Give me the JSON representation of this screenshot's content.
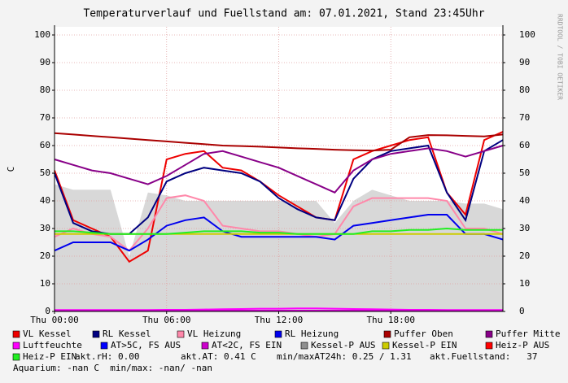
{
  "chart_data": {
    "type": "line",
    "title": "Temperaturverlauf und Fuellstand am: 07.01.2021, Stand 23:45Uhr",
    "y_label": "C",
    "watermark": "RRDTOOL / TOBI OETIKER",
    "x": [
      0,
      1,
      2,
      3,
      4,
      5,
      6,
      7,
      8,
      9,
      10,
      11,
      12,
      13,
      14,
      15,
      16,
      17,
      18,
      19,
      20,
      21,
      22,
      23,
      24
    ],
    "xlim": [
      0,
      24
    ],
    "xticks": [
      {
        "value": 0,
        "label": "Thu 00:00"
      },
      {
        "value": 6,
        "label": "Thu 06:00"
      },
      {
        "value": 12,
        "label": "Thu 12:00"
      },
      {
        "value": 18,
        "label": "Thu 18:00"
      }
    ],
    "ylim": [
      0,
      100
    ],
    "yticks": [
      0,
      10,
      20,
      30,
      40,
      50,
      60,
      70,
      80,
      90,
      100
    ],
    "y2lim": [
      0,
      100
    ],
    "y2ticks": [
      0,
      10,
      20,
      30,
      40,
      50,
      60,
      70,
      80,
      90,
      100
    ],
    "grid": true,
    "series": [
      {
        "name": "VL Kessel",
        "color": "#ee0000",
        "values": [
          51,
          33,
          30,
          27,
          18,
          22,
          55,
          57,
          58,
          52,
          51,
          47,
          42,
          38,
          34,
          33,
          55,
          58,
          60,
          62,
          63,
          43,
          35,
          62,
          65
        ]
      },
      {
        "name": "RL Kessel",
        "color": "#000080",
        "values": [
          50,
          32,
          29,
          28,
          28,
          34,
          47,
          50,
          52,
          51,
          50,
          47,
          41,
          37,
          34,
          33,
          48,
          55,
          58,
          59,
          60,
          43,
          33,
          58,
          62
        ]
      },
      {
        "name": "VL Heizung",
        "color": "#ff88aa",
        "values": [
          27,
          30,
          28,
          27,
          22,
          30,
          41,
          42,
          40,
          31,
          30,
          29,
          29,
          28,
          27,
          28,
          38,
          41,
          41,
          41,
          41,
          40,
          30,
          30,
          28
        ]
      },
      {
        "name": "RL Heizung",
        "color": "#0000ee",
        "values": [
          22,
          25,
          25,
          25,
          22,
          26,
          31,
          33,
          34,
          29,
          27,
          27,
          27,
          27,
          27,
          26,
          31,
          32,
          33,
          34,
          35,
          35,
          28,
          28,
          26
        ]
      },
      {
        "name": "Puffer Oben",
        "color": "#aa0000",
        "values": [
          64.5,
          64,
          63.5,
          63,
          62.5,
          62,
          61.5,
          61,
          60.5,
          60,
          59.8,
          59.6,
          59.3,
          59,
          58.8,
          58.5,
          58.3,
          58.2,
          58.5,
          63,
          63.8,
          63.7,
          63.5,
          63.3,
          64
        ]
      },
      {
        "name": "Puffer Mitte",
        "color": "#880088",
        "values": [
          55,
          53,
          51,
          50,
          48,
          46,
          49,
          53,
          57,
          58,
          56,
          54,
          52,
          49,
          46,
          43,
          51,
          55,
          57,
          58,
          59,
          58,
          56,
          58,
          60
        ]
      },
      {
        "name": "Luftfeuchte",
        "color": "#ff00ff",
        "values": [
          0.5,
          0.5,
          0.5,
          0.5,
          0.5,
          0.5,
          0.6,
          0.6,
          0.7,
          0.8,
          0.9,
          1,
          1,
          1.1,
          1.1,
          1,
          0.9,
          0.8,
          0.7,
          0.6,
          0.6,
          0.5,
          0.5,
          0.5,
          0.5
        ]
      },
      {
        "name": "AT>5C, FS AUS",
        "color": "#0000ff",
        "values": [
          null,
          null,
          null,
          null,
          null,
          null,
          null,
          null,
          null,
          null,
          null,
          null,
          null,
          null,
          null,
          null,
          null,
          null,
          null,
          null,
          null,
          null,
          null,
          null,
          null
        ]
      },
      {
        "name": "AT<2C, FS EIN",
        "color": "#cc00cc",
        "values": [
          0.3,
          0.3,
          0.3,
          0.3,
          0.3,
          0.3,
          0.3,
          0.3,
          0.3,
          0.3,
          0.3,
          0.3,
          0.3,
          0.3,
          0.3,
          0.3,
          0.3,
          0.3,
          0.3,
          0.3,
          0.3,
          0.3,
          0.3,
          0.3,
          0.3
        ]
      },
      {
        "name": "Kessel-P AUS",
        "color": "#909090",
        "style": "area",
        "values": [
          46,
          44,
          44,
          44,
          20,
          43,
          42,
          40,
          40,
          40,
          40,
          40,
          40,
          40,
          40,
          32,
          40,
          44,
          42,
          40,
          40,
          40,
          39,
          39,
          37
        ]
      },
      {
        "name": "Kessel-P EIN",
        "color": "#cccc00",
        "values": [
          28,
          28,
          28,
          28,
          28,
          28,
          28,
          28,
          28,
          28,
          28,
          28,
          28,
          28,
          28,
          28,
          28,
          28,
          28,
          28,
          28,
          28,
          28,
          28,
          28
        ]
      },
      {
        "name": "Heiz-P AUS",
        "color": "#ff0000",
        "values": [
          null,
          null,
          null,
          null,
          null,
          null,
          null,
          null,
          null,
          null,
          null,
          null,
          null,
          null,
          null,
          null,
          null,
          null,
          null,
          null,
          null,
          null,
          null,
          null,
          null
        ]
      },
      {
        "name": "Heiz-P EIN",
        "color": "#22ee22",
        "values": [
          29,
          29,
          28.5,
          28,
          28,
          28,
          28,
          28.5,
          29,
          29,
          29,
          28.5,
          28.5,
          28,
          28,
          28,
          28,
          29,
          29,
          29.5,
          29.5,
          30,
          29.5,
          29.5,
          29.5
        ]
      }
    ],
    "notes": [
      "akt.rH: 0.00",
      "akt.AT: 0.41 C",
      "min/maxAT24h: 0.25 / 1.31",
      "akt.Fuellstand:   37",
      "Aquarium: -nan C  min/max: -nan/ -nan"
    ]
  }
}
